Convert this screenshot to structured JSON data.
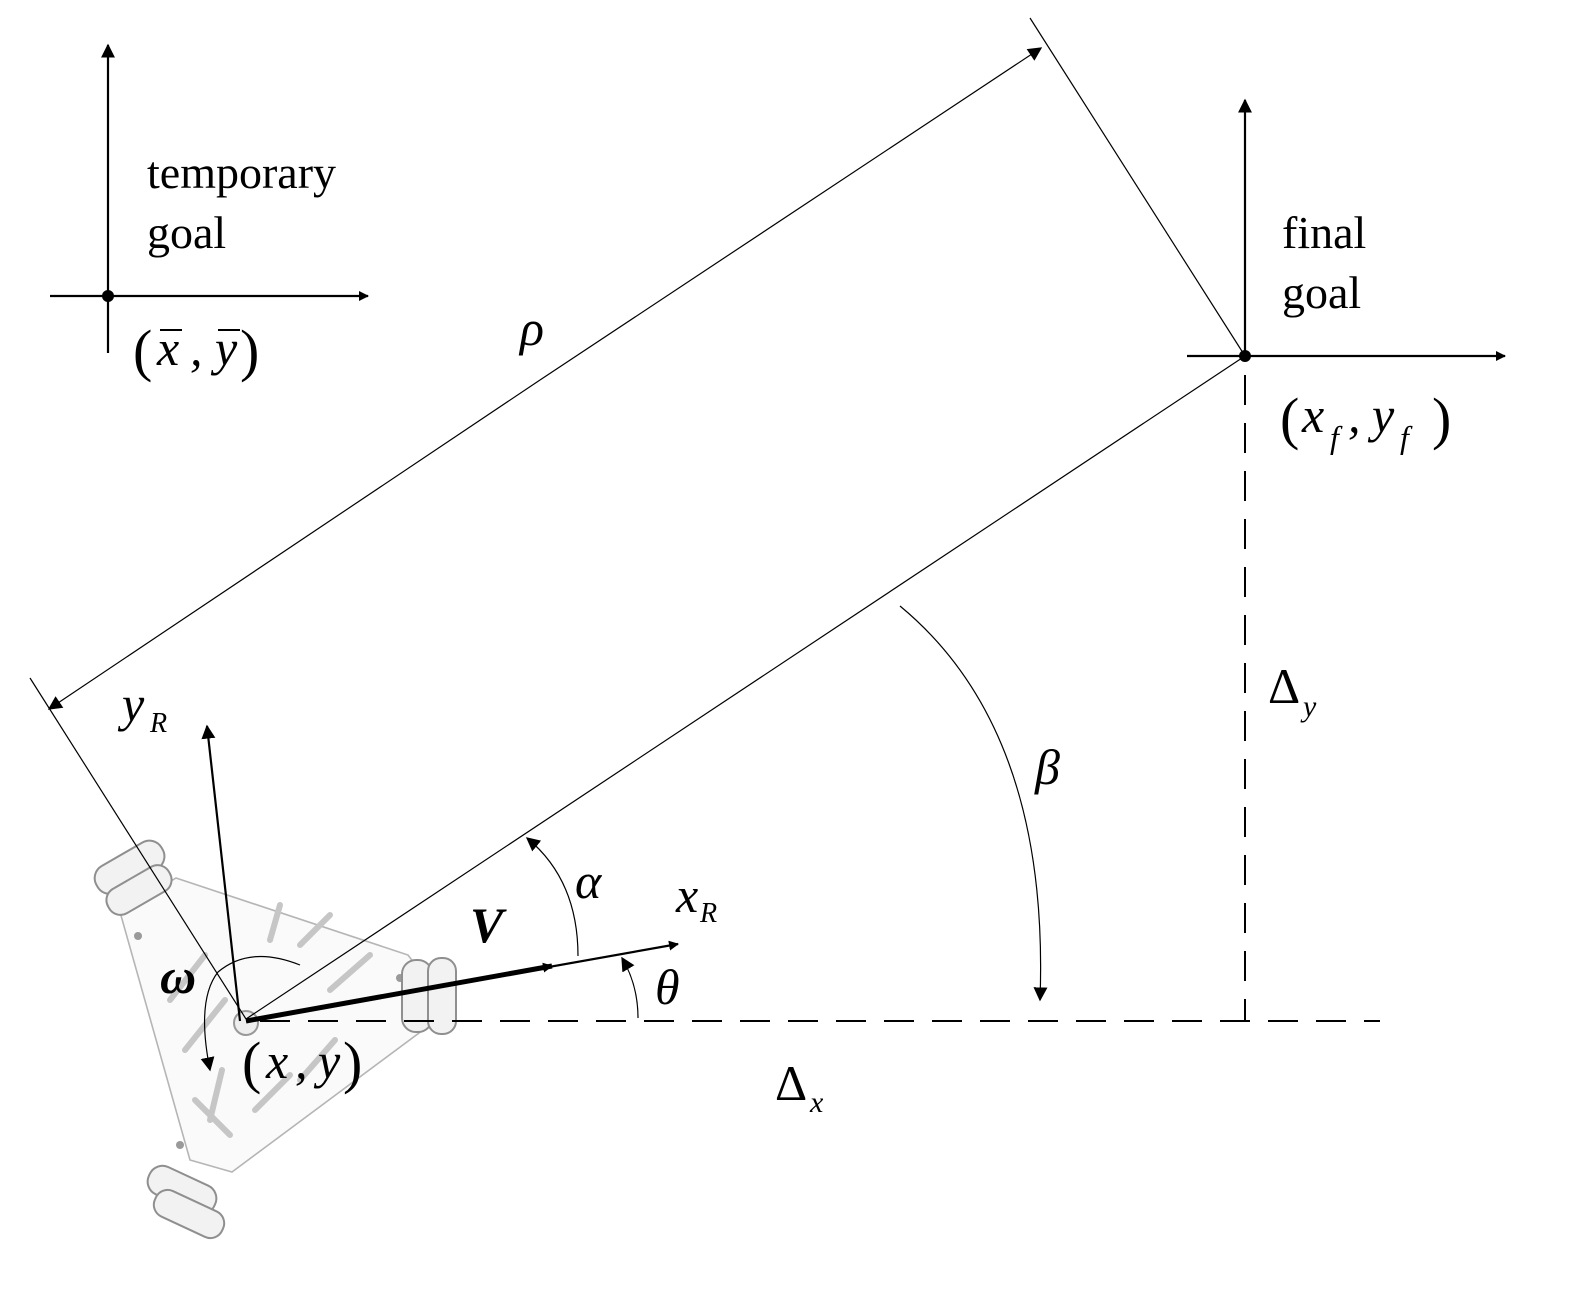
{
  "temporary_goal": {
    "label_line1": "temporary",
    "label_line2": "goal",
    "coord_x": "x",
    "coord_y": "y"
  },
  "final_goal": {
    "label_line1": "final",
    "label_line2": "goal",
    "coord_x": "x",
    "coord_x_sub": "f",
    "coord_y": "y",
    "coord_y_sub": "f"
  },
  "robot": {
    "position_x": "x",
    "position_y": "y",
    "axis_x": "x",
    "axis_x_sub": "R",
    "axis_y": "y",
    "axis_y_sub": "R"
  },
  "symbols": {
    "rho": "ρ",
    "alpha": "α",
    "beta": "β",
    "theta": "θ",
    "omega": "ω",
    "velocity": "V",
    "delta": "Δ",
    "delta_x_sub": "x",
    "delta_y_sub": "y"
  },
  "punctuation": {
    "open_paren": "(",
    "close_paren": ")",
    "comma": ","
  },
  "colors": {
    "ink": "#000000",
    "robot_outline": "#b5b5b5"
  }
}
